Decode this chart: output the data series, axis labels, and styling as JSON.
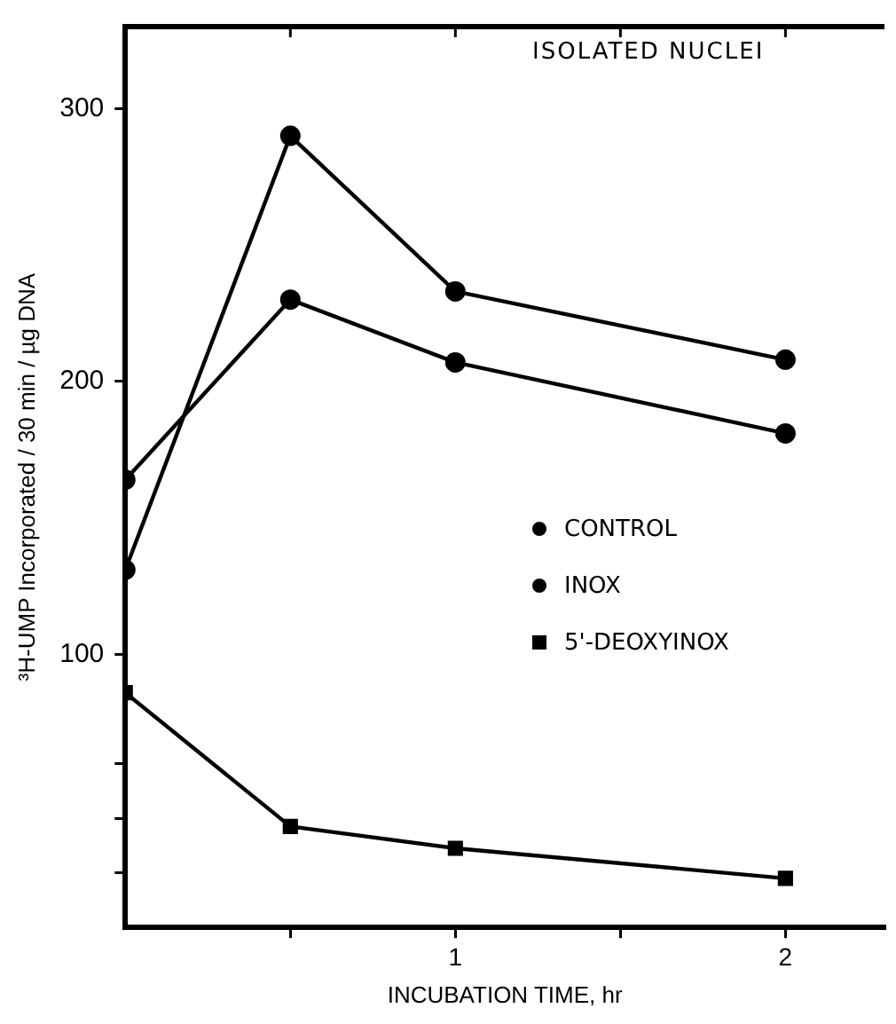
{
  "chart_data": {
    "type": "line",
    "title": "ISOLATED NUCLEI",
    "xlabel": "INCUBATION TIME, hr",
    "ylabel": "³H-UMP Incorporated / 30 min / µg DNA",
    "x": [
      0,
      0.5,
      1,
      2
    ],
    "series": [
      {
        "name": "CONTROL",
        "color": "#000000",
        "marker": "circle",
        "values": [
          164,
          230,
          207,
          181
        ]
      },
      {
        "name": "INOX",
        "color": "#000000",
        "marker": "circle",
        "values": [
          131,
          290,
          233,
          208
        ]
      },
      {
        "name": "5'-DEOXYINOX",
        "color": "#000000",
        "marker": "square",
        "values": [
          86,
          37,
          29,
          18
        ]
      }
    ],
    "xlim": [
      0,
      2.3
    ],
    "xticks": [
      {
        "value": 0.5,
        "label": null
      },
      1,
      {
        "value": 1.5,
        "label": null
      },
      2
    ],
    "ylim": [
      0,
      330
    ],
    "yticks": [
      {
        "value": 20,
        "label": null
      },
      {
        "value": 40,
        "label": null
      },
      {
        "value": 60,
        "label": null
      },
      100,
      200,
      300
    ],
    "grid": false,
    "legend": "right",
    "line_style": "solid"
  }
}
